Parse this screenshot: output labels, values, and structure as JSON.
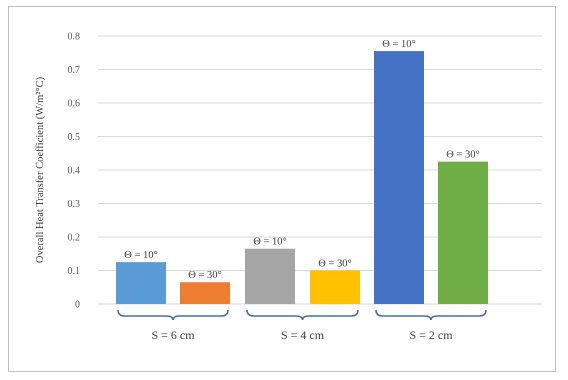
{
  "chart_data": {
    "type": "bar",
    "ylabel": "Overall Heat Transfer Coefficient  (W/m²°C)",
    "ylim": [
      0,
      0.8
    ],
    "yticks": [
      "0",
      "0.1",
      "0.2",
      "0.3",
      "0.4",
      "0.5",
      "0.6",
      "0.7",
      "0.8"
    ],
    "grid": true,
    "bars": [
      {
        "label": "Θ = 10°",
        "value": 0.125,
        "color": "#5b9bd5"
      },
      {
        "label": "Θ = 30°",
        "value": 0.065,
        "color": "#ed7d31"
      },
      {
        "label": "Θ = 10°",
        "value": 0.165,
        "color": "#a5a5a5"
      },
      {
        "label": "Θ = 30°",
        "value": 0.1,
        "color": "#ffc000"
      },
      {
        "label": "Θ = 10°",
        "value": 0.755,
        "color": "#4472c4"
      },
      {
        "label": "Θ = 30°",
        "value": 0.425,
        "color": "#70ad47"
      }
    ],
    "groups": [
      "S = 6 cm",
      "S = 4 cm",
      "S = 2 cm"
    ]
  }
}
